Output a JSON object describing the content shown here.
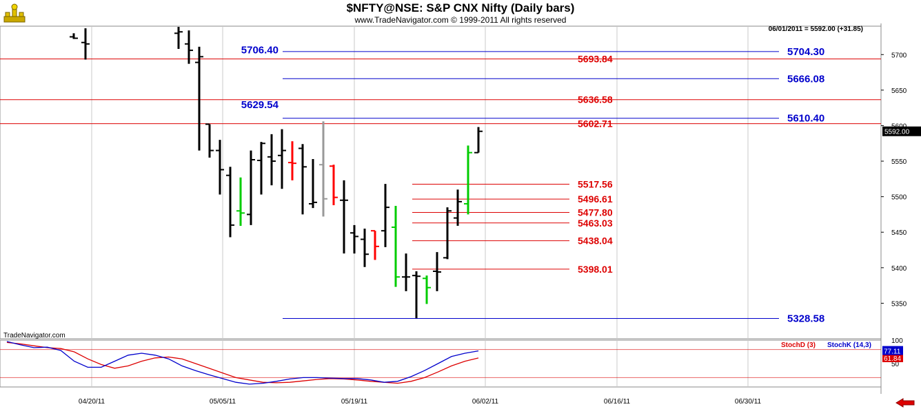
{
  "header": {
    "title": "$NFTY@NSE:  S&P CNX Nifty  (Daily bars)",
    "subtitle": "www.TradeNavigator.com © 1999-2011 All rights reserved",
    "readout": "06/01/2011 = 5592.00 (+31.85)",
    "watermark": "TradeNavigator.com"
  },
  "colors": {
    "up_bar": "#000000",
    "down_bar": "#ff0000",
    "neutral_bar": "#999999",
    "green_bar": "#00cc00",
    "red_level": "#dd0000",
    "blue_level": "#0000cc",
    "stoch_d": "#dd0000",
    "stoch_k": "#0000cc"
  },
  "chart_data": [
    {
      "type": "ohlc",
      "ylim": [
        5300,
        5740
      ],
      "x_dates": [
        "04/20/11",
        "05/05/11",
        "05/19/11",
        "06/02/11",
        "06/16/11",
        "06/30/11"
      ],
      "yticks": [
        5350,
        5400,
        5450,
        5500,
        5550,
        5600,
        5650,
        5700
      ],
      "last_price": "5592.00",
      "bars": [
        {
          "date": "04/15/11",
          "open": 5725,
          "high": 5730,
          "low": 5722,
          "close": 5723,
          "color": "black"
        },
        {
          "date": "04/18/11",
          "open": 5717,
          "high": 5737,
          "low": 5693,
          "close": 5715,
          "color": "black"
        },
        {
          "date": "04/27/11",
          "open": 5730,
          "high": 5739,
          "low": 5708,
          "close": 5732,
          "color": "black"
        },
        {
          "date": "04/28/11",
          "open": 5715,
          "high": 5734,
          "low": 5687,
          "close": 5706,
          "color": "black"
        },
        {
          "date": "04/29/11",
          "open": 5689,
          "high": 5711,
          "low": 5565,
          "close": 5697,
          "color": "black"
        },
        {
          "date": "05/02/11",
          "open": 5602,
          "high": 5602,
          "low": 5555,
          "close": 5565,
          "color": "black"
        },
        {
          "date": "05/03/11",
          "open": 5565,
          "high": 5580,
          "low": 5503,
          "close": 5538,
          "color": "black"
        },
        {
          "date": "05/04/11",
          "open": 5530,
          "high": 5542,
          "low": 5443,
          "close": 5460,
          "color": "black"
        },
        {
          "date": "05/05/11",
          "open": 5480,
          "high": 5527,
          "low": 5459,
          "close": 5477,
          "color": "green"
        },
        {
          "date": "05/06/11",
          "open": 5475,
          "high": 5565,
          "low": 5460,
          "close": 5552,
          "color": "black"
        },
        {
          "date": "05/09/11",
          "open": 5551,
          "high": 5577,
          "low": 5503,
          "close": 5575,
          "color": "black"
        },
        {
          "date": "05/10/11",
          "open": 5556,
          "high": 5588,
          "low": 5516,
          "close": 5550,
          "color": "black"
        },
        {
          "date": "05/11/11",
          "open": 5558,
          "high": 5595,
          "low": 5511,
          "close": 5565,
          "color": "black"
        },
        {
          "date": "05/12/11",
          "open": 5548,
          "high": 5578,
          "low": 5523,
          "close": 5547,
          "color": "red"
        },
        {
          "date": "05/13/11",
          "open": 5568,
          "high": 5574,
          "low": 5475,
          "close": 5542,
          "color": "black"
        },
        {
          "date": "05/16/11",
          "open": 5490,
          "high": 5553,
          "low": 5484,
          "close": 5492,
          "color": "black"
        },
        {
          "date": "05/17/11",
          "open": 5545,
          "high": 5606,
          "low": 5472,
          "close": 5497,
          "color": "neutral"
        },
        {
          "date": "05/18/11",
          "open": 5543,
          "high": 5545,
          "low": 5488,
          "close": 5499,
          "color": "red"
        },
        {
          "date": "05/19/11",
          "open": 5495,
          "high": 5523,
          "low": 5420,
          "close": 5495,
          "color": "black"
        },
        {
          "date": "05/20/11",
          "open": 5449,
          "high": 5460,
          "low": 5420,
          "close": 5444,
          "color": "black"
        },
        {
          "date": "05/23/11",
          "open": 5440,
          "high": 5455,
          "low": 5401,
          "close": 5419,
          "color": "black"
        },
        {
          "date": "05/24/11",
          "open": 5452,
          "high": 5452,
          "low": 5411,
          "close": 5430,
          "color": "red"
        },
        {
          "date": "05/25/11",
          "open": 5452,
          "high": 5518,
          "low": 5429,
          "close": 5485,
          "color": "black"
        },
        {
          "date": "05/26/11",
          "open": 5457,
          "high": 5487,
          "low": 5373,
          "close": 5387,
          "color": "green"
        },
        {
          "date": "05/27/11",
          "open": 5387,
          "high": 5420,
          "low": 5367,
          "close": 5387,
          "color": "black"
        },
        {
          "date": "05/30/11",
          "open": 5389,
          "high": 5395,
          "low": 5329,
          "close": 5388,
          "color": "black"
        },
        {
          "date": "05/31/11",
          "open": 5385,
          "high": 5389,
          "low": 5349,
          "close": 5372,
          "color": "green"
        },
        {
          "date": "06/01/11",
          "open": 5395,
          "high": 5422,
          "low": 5367,
          "close": 5394,
          "color": "black"
        },
        {
          "date": "06/02/11",
          "open": 5414,
          "high": 5485,
          "low": 5412,
          "close": 5480,
          "color": "black"
        },
        {
          "date": "06/03/11",
          "open": 5470,
          "high": 5510,
          "low": 5459,
          "close": 5493,
          "color": "black"
        },
        {
          "date": "06/06/11",
          "open": 5490,
          "high": 5572,
          "low": 5475,
          "close": 5562,
          "color": "green"
        },
        {
          "date": "06/07/11",
          "open": 5562,
          "high": 5598,
          "low": 5562,
          "close": 5592,
          "color": "black"
        }
      ],
      "levels": [
        {
          "value": 5704.3,
          "label": "5704.30",
          "color": "blue",
          "label_side": "right"
        },
        {
          "value": 5706.4,
          "label": "5706.40",
          "color": "blue",
          "label_side": "left"
        },
        {
          "value": 5693.84,
          "label": "5693.84",
          "color": "red",
          "label_side": "mid"
        },
        {
          "value": 5666.08,
          "label": "5666.08",
          "color": "blue",
          "label_side": "right"
        },
        {
          "value": 5636.58,
          "label": "5636.58",
          "color": "red",
          "label_side": "mid"
        },
        {
          "value": 5629.54,
          "label": "5629.54",
          "color": "blue",
          "label_side": "left"
        },
        {
          "value": 5610.4,
          "label": "5610.40",
          "color": "blue",
          "label_side": "right"
        },
        {
          "value": 5602.71,
          "label": "5602.71",
          "color": "red",
          "label_side": "mid"
        },
        {
          "value": 5517.56,
          "label": "5517.56",
          "color": "red",
          "label_side": "mid"
        },
        {
          "value": 5496.61,
          "label": "5496.61",
          "color": "red",
          "label_side": "mid"
        },
        {
          "value": 5477.8,
          "label": "5477.80",
          "color": "red",
          "label_side": "mid"
        },
        {
          "value": 5463.03,
          "label": "5463.03",
          "color": "red",
          "label_side": "mid"
        },
        {
          "value": 5438.04,
          "label": "5438.04",
          "color": "red",
          "label_side": "mid"
        },
        {
          "value": 5398.01,
          "label": "5398.01",
          "color": "red",
          "label_side": "mid"
        },
        {
          "value": 5328.58,
          "label": "5328.58",
          "color": "blue",
          "label_side": "right"
        }
      ]
    },
    {
      "type": "line",
      "ylim": [
        0,
        100
      ],
      "yticks": [
        50,
        100
      ],
      "reference_lines": [
        80,
        20
      ],
      "series": [
        {
          "name": "StochD (3)",
          "values": [
            95,
            92,
            88,
            84,
            82,
            75,
            60,
            48,
            40,
            45,
            55,
            62,
            64,
            60,
            50,
            40,
            30,
            20,
            15,
            10,
            9,
            10,
            13,
            16,
            18,
            17,
            15,
            12,
            10,
            8,
            12,
            20,
            32,
            45,
            55,
            61.84
          ],
          "last": "61.84"
        },
        {
          "name": "StochK (14,3)",
          "values": [
            97,
            90,
            84,
            85,
            78,
            55,
            42,
            42,
            55,
            68,
            72,
            68,
            60,
            45,
            35,
            26,
            18,
            10,
            6,
            8,
            12,
            17,
            20,
            20,
            19,
            18,
            18,
            15,
            10,
            12,
            22,
            35,
            50,
            65,
            72,
            77.11
          ],
          "last": "77.11"
        }
      ]
    }
  ]
}
